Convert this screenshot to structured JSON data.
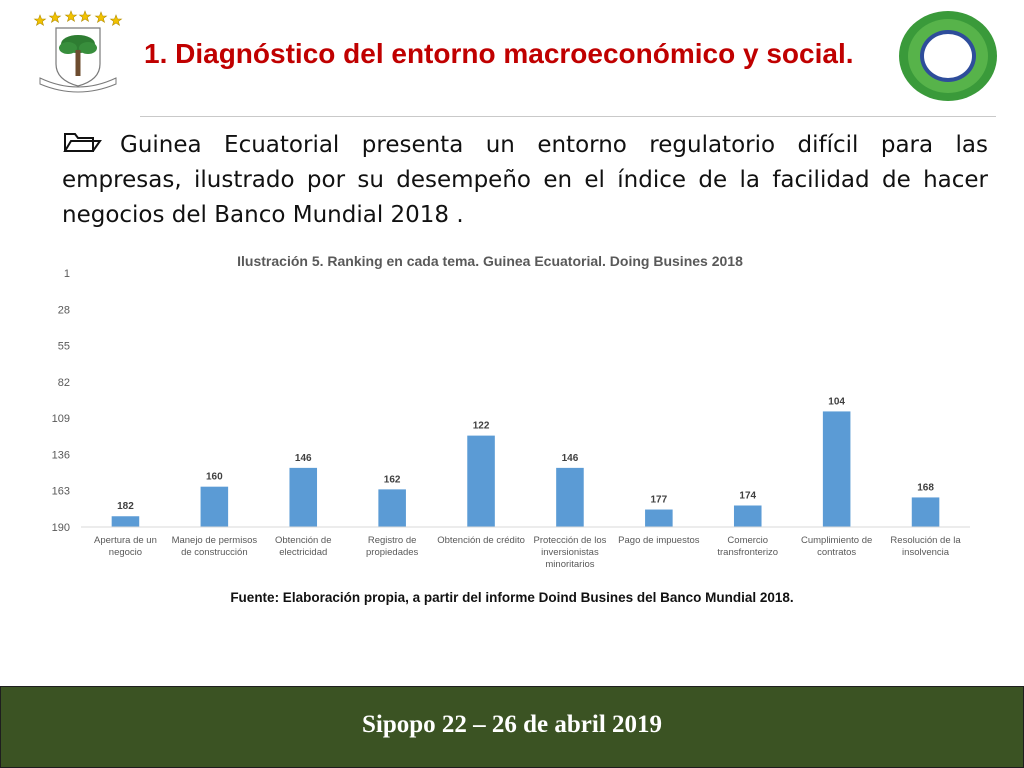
{
  "slide": {
    "title": "1. Diagnóstico del entorno macroeconómico y social.",
    "bullet": "Guinea Ecuatorial presenta un entorno regulatorio difícil para las empresas, ilustrado por su desempeño en el índice de la facilidad de hacer negocios del Banco Mundial 2018 .",
    "source": "Fuente: Elaboración propia, a partir del   informe Doind Busines del Banco Mundial 2018.",
    "footer": "Sipopo 22 – 26 de abril 2019",
    "emblem_motto": [
      "UNIDAD",
      "PAZ",
      "JUSTICIA"
    ]
  },
  "icons": {
    "bullet": "folder-outline-icon",
    "emblem": "coat-of-arms-icon",
    "logo": "green-ring-logo-icon"
  },
  "colors": {
    "title": "#c00000",
    "bar": "#5b9bd5",
    "footer_bg": "#3b5323",
    "logo_outer": "#3a9a3a",
    "logo_inner": "#2e4d9b"
  },
  "chart_data": {
    "type": "bar",
    "title": "Ilustración 5. Ranking en cada tema. Guinea Ecuatorial. Doing Busines 2018",
    "categories": [
      [
        "Apertura de un",
        "negocio"
      ],
      [
        "Manejo de permisos",
        "de construcción"
      ],
      [
        "Obtención de",
        "electricidad"
      ],
      [
        "Registro de",
        "propiedades"
      ],
      [
        "Obtención de crédito"
      ],
      [
        "Protección de los",
        "inversionistas",
        "minoritarios"
      ],
      [
        "Pago de impuestos"
      ],
      [
        "Comercio",
        "transfronterizo"
      ],
      [
        "Cumplimiento de",
        "contratos"
      ],
      [
        "Resolución de la",
        "insolvencia"
      ]
    ],
    "values": [
      182,
      160,
      146,
      162,
      122,
      146,
      177,
      174,
      104,
      168
    ],
    "yticks": [
      1,
      28,
      55,
      82,
      109,
      136,
      163,
      190
    ],
    "ylim": [
      1,
      190
    ],
    "y_reversed": true,
    "grid": false,
    "legend": "none"
  }
}
